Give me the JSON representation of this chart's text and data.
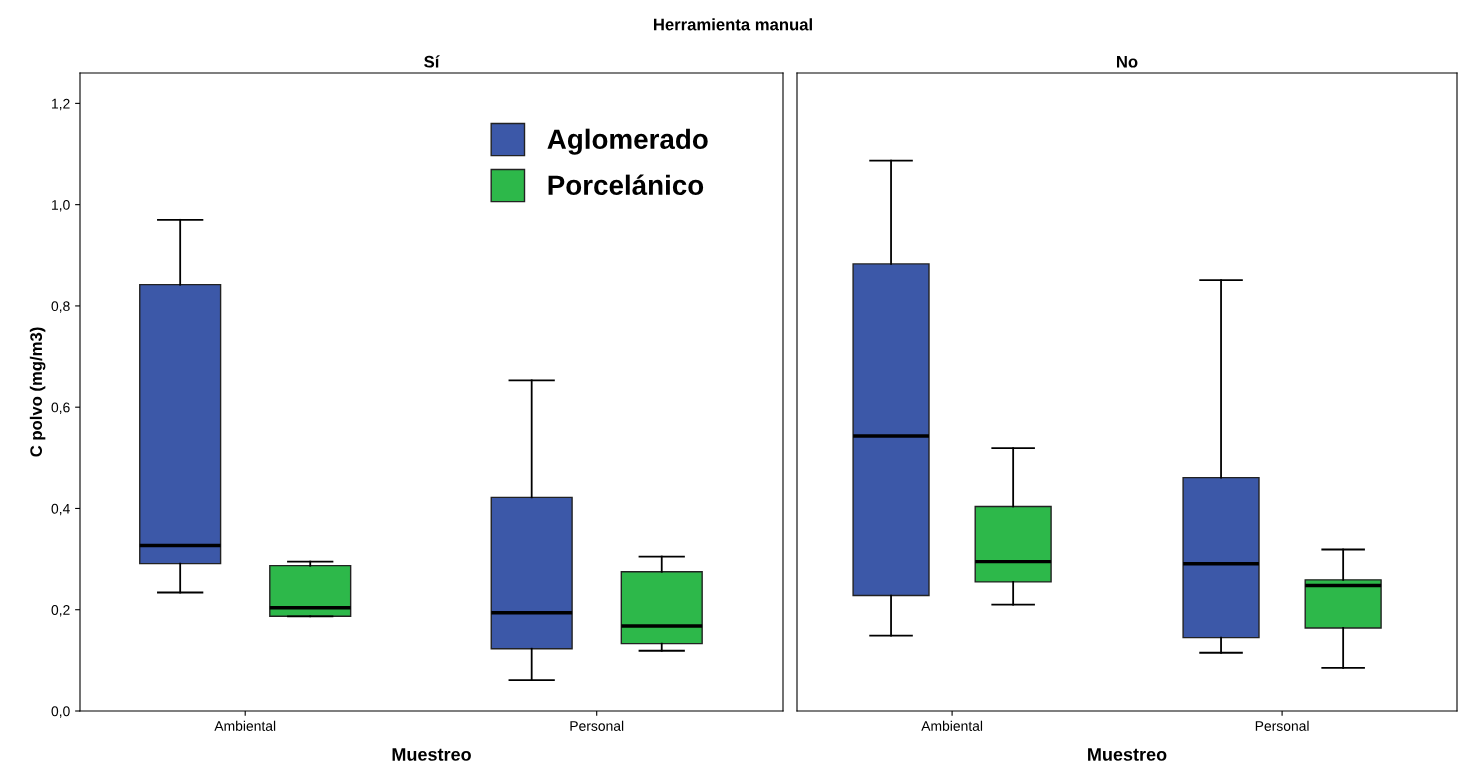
{
  "chart_data": [
    {
      "type": "box",
      "title": "Sí",
      "xlabel": "Muestreo",
      "ylabel": "C polvo (mg/m3)",
      "annotations": [
        "Herramienta manual"
      ],
      "categories": [
        "Ambiental",
        "Personal"
      ],
      "ylim": [
        0,
        1.26
      ],
      "yticks": [
        {
          "value": 0,
          "label": "0,0"
        },
        {
          "value": 0.2,
          "label": "0,2"
        },
        {
          "value": 0.4,
          "label": "0,4"
        },
        {
          "value": 0.6,
          "label": "0,6"
        },
        {
          "value": 0.8,
          "label": "0,8"
        },
        {
          "value": 1.0,
          "label": "1,0"
        },
        {
          "value": 1.2,
          "label": "1,2"
        }
      ],
      "grid": false,
      "legend": "top right",
      "series": [
        {
          "name": "Aglomerado",
          "color": "#3c58a8",
          "boxes": [
            {
              "low": 0.234,
              "q1": 0.291,
              "median": 0.327,
              "q3": 0.842,
              "high": 0.97
            },
            {
              "low": 0.061,
              "q1": 0.123,
              "median": 0.194,
              "q3": 0.422,
              "high": 0.653
            }
          ]
        },
        {
          "name": "Porcelánico",
          "color": "#2db84a",
          "boxes": [
            {
              "low": 0.187,
              "q1": 0.187,
              "median": 0.204,
              "q3": 0.287,
              "high": 0.295
            },
            {
              "low": 0.119,
              "q1": 0.133,
              "median": 0.168,
              "q3": 0.275,
              "high": 0.305
            }
          ]
        }
      ]
    },
    {
      "type": "box",
      "title": "No",
      "xlabel": "Muestreo",
      "categories": [
        "Ambiental",
        "Personal"
      ],
      "ylim": [
        0,
        1.26
      ],
      "tick_labels": "x",
      "grid": false,
      "series": [
        {
          "color": "#3c58a8",
          "boxes": [
            {
              "low": 0.149,
              "q1": 0.228,
              "median": 0.543,
              "q3": 0.883,
              "high": 1.087
            },
            {
              "low": 0.115,
              "q1": 0.145,
              "median": 0.291,
              "q3": 0.461,
              "high": 0.851
            }
          ]
        },
        {
          "color": "#2db84a",
          "boxes": [
            {
              "low": 0.21,
              "q1": 0.255,
              "median": 0.295,
              "q3": 0.404,
              "high": 0.519
            },
            {
              "low": 0.085,
              "q1": 0.164,
              "median": 0.248,
              "q3": 0.259,
              "high": 0.319
            }
          ]
        }
      ]
    }
  ]
}
